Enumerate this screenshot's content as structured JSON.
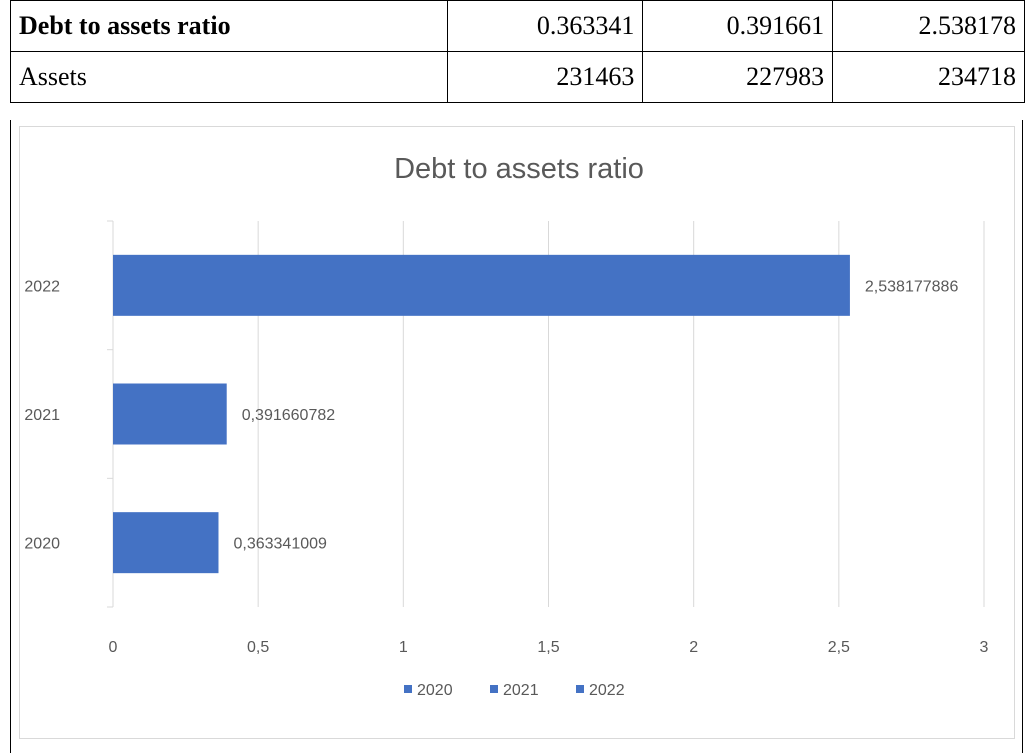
{
  "table": {
    "rows": [
      {
        "label": "Debt to assets ratio",
        "values": [
          "0.363341",
          "0.391661",
          "2.538178"
        ]
      },
      {
        "label": "Assets",
        "values": [
          "231463",
          "227983",
          "234718"
        ]
      }
    ]
  },
  "chart_data": {
    "type": "bar",
    "orientation": "horizontal",
    "title": "Debt to assets ratio",
    "categories": [
      "2020",
      "2021",
      "2022"
    ],
    "values": [
      0.363341009,
      0.391660782,
      2.538177886
    ],
    "data_labels": [
      "0,363341009",
      "0,391660782",
      "2,538177886"
    ],
    "xlim": [
      0,
      3
    ],
    "x_ticks": [
      "0",
      "0,5",
      "1",
      "1,5",
      "2",
      "2,5",
      "3"
    ],
    "x_tick_values": [
      0,
      0.5,
      1,
      1.5,
      2,
      2.5,
      3
    ],
    "legend": [
      "2020",
      "2021",
      "2022"
    ],
    "legend_position": "bottom",
    "grid": true,
    "bar_color": "#4472c4",
    "gridline_color": "#d9d9d9",
    "text_color": "#595959"
  }
}
